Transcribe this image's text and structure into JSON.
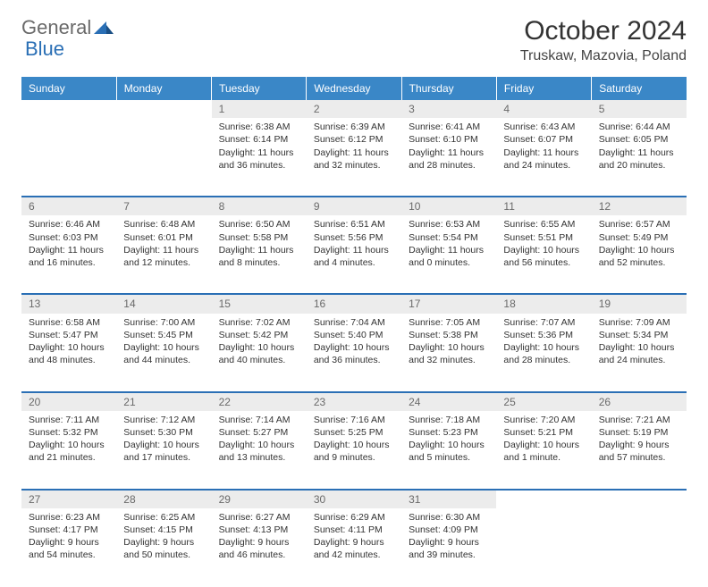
{
  "brand": {
    "part1": "General",
    "part2": "Blue"
  },
  "title": "October 2024",
  "location": "Truskaw, Mazovia, Poland",
  "colors": {
    "header_bg": "#3a87c7",
    "header_text": "#ffffff",
    "daynum_bg": "#ececec",
    "daynum_text": "#6a6a6a",
    "border": "#2a6fb5",
    "body_text": "#333333",
    "logo_gray": "#6a6a6a",
    "logo_blue": "#2a6fb5"
  },
  "weekdays": [
    "Sunday",
    "Monday",
    "Tuesday",
    "Wednesday",
    "Thursday",
    "Friday",
    "Saturday"
  ],
  "weeks": [
    [
      null,
      null,
      {
        "n": "1",
        "sunrise": "Sunrise: 6:38 AM",
        "sunset": "Sunset: 6:14 PM",
        "daylight": "Daylight: 11 hours and 36 minutes."
      },
      {
        "n": "2",
        "sunrise": "Sunrise: 6:39 AM",
        "sunset": "Sunset: 6:12 PM",
        "daylight": "Daylight: 11 hours and 32 minutes."
      },
      {
        "n": "3",
        "sunrise": "Sunrise: 6:41 AM",
        "sunset": "Sunset: 6:10 PM",
        "daylight": "Daylight: 11 hours and 28 minutes."
      },
      {
        "n": "4",
        "sunrise": "Sunrise: 6:43 AM",
        "sunset": "Sunset: 6:07 PM",
        "daylight": "Daylight: 11 hours and 24 minutes."
      },
      {
        "n": "5",
        "sunrise": "Sunrise: 6:44 AM",
        "sunset": "Sunset: 6:05 PM",
        "daylight": "Daylight: 11 hours and 20 minutes."
      }
    ],
    [
      {
        "n": "6",
        "sunrise": "Sunrise: 6:46 AM",
        "sunset": "Sunset: 6:03 PM",
        "daylight": "Daylight: 11 hours and 16 minutes."
      },
      {
        "n": "7",
        "sunrise": "Sunrise: 6:48 AM",
        "sunset": "Sunset: 6:01 PM",
        "daylight": "Daylight: 11 hours and 12 minutes."
      },
      {
        "n": "8",
        "sunrise": "Sunrise: 6:50 AM",
        "sunset": "Sunset: 5:58 PM",
        "daylight": "Daylight: 11 hours and 8 minutes."
      },
      {
        "n": "9",
        "sunrise": "Sunrise: 6:51 AM",
        "sunset": "Sunset: 5:56 PM",
        "daylight": "Daylight: 11 hours and 4 minutes."
      },
      {
        "n": "10",
        "sunrise": "Sunrise: 6:53 AM",
        "sunset": "Sunset: 5:54 PM",
        "daylight": "Daylight: 11 hours and 0 minutes."
      },
      {
        "n": "11",
        "sunrise": "Sunrise: 6:55 AM",
        "sunset": "Sunset: 5:51 PM",
        "daylight": "Daylight: 10 hours and 56 minutes."
      },
      {
        "n": "12",
        "sunrise": "Sunrise: 6:57 AM",
        "sunset": "Sunset: 5:49 PM",
        "daylight": "Daylight: 10 hours and 52 minutes."
      }
    ],
    [
      {
        "n": "13",
        "sunrise": "Sunrise: 6:58 AM",
        "sunset": "Sunset: 5:47 PM",
        "daylight": "Daylight: 10 hours and 48 minutes."
      },
      {
        "n": "14",
        "sunrise": "Sunrise: 7:00 AM",
        "sunset": "Sunset: 5:45 PM",
        "daylight": "Daylight: 10 hours and 44 minutes."
      },
      {
        "n": "15",
        "sunrise": "Sunrise: 7:02 AM",
        "sunset": "Sunset: 5:42 PM",
        "daylight": "Daylight: 10 hours and 40 minutes."
      },
      {
        "n": "16",
        "sunrise": "Sunrise: 7:04 AM",
        "sunset": "Sunset: 5:40 PM",
        "daylight": "Daylight: 10 hours and 36 minutes."
      },
      {
        "n": "17",
        "sunrise": "Sunrise: 7:05 AM",
        "sunset": "Sunset: 5:38 PM",
        "daylight": "Daylight: 10 hours and 32 minutes."
      },
      {
        "n": "18",
        "sunrise": "Sunrise: 7:07 AM",
        "sunset": "Sunset: 5:36 PM",
        "daylight": "Daylight: 10 hours and 28 minutes."
      },
      {
        "n": "19",
        "sunrise": "Sunrise: 7:09 AM",
        "sunset": "Sunset: 5:34 PM",
        "daylight": "Daylight: 10 hours and 24 minutes."
      }
    ],
    [
      {
        "n": "20",
        "sunrise": "Sunrise: 7:11 AM",
        "sunset": "Sunset: 5:32 PM",
        "daylight": "Daylight: 10 hours and 21 minutes."
      },
      {
        "n": "21",
        "sunrise": "Sunrise: 7:12 AM",
        "sunset": "Sunset: 5:30 PM",
        "daylight": "Daylight: 10 hours and 17 minutes."
      },
      {
        "n": "22",
        "sunrise": "Sunrise: 7:14 AM",
        "sunset": "Sunset: 5:27 PM",
        "daylight": "Daylight: 10 hours and 13 minutes."
      },
      {
        "n": "23",
        "sunrise": "Sunrise: 7:16 AM",
        "sunset": "Sunset: 5:25 PM",
        "daylight": "Daylight: 10 hours and 9 minutes."
      },
      {
        "n": "24",
        "sunrise": "Sunrise: 7:18 AM",
        "sunset": "Sunset: 5:23 PM",
        "daylight": "Daylight: 10 hours and 5 minutes."
      },
      {
        "n": "25",
        "sunrise": "Sunrise: 7:20 AM",
        "sunset": "Sunset: 5:21 PM",
        "daylight": "Daylight: 10 hours and 1 minute."
      },
      {
        "n": "26",
        "sunrise": "Sunrise: 7:21 AM",
        "sunset": "Sunset: 5:19 PM",
        "daylight": "Daylight: 9 hours and 57 minutes."
      }
    ],
    [
      {
        "n": "27",
        "sunrise": "Sunrise: 6:23 AM",
        "sunset": "Sunset: 4:17 PM",
        "daylight": "Daylight: 9 hours and 54 minutes."
      },
      {
        "n": "28",
        "sunrise": "Sunrise: 6:25 AM",
        "sunset": "Sunset: 4:15 PM",
        "daylight": "Daylight: 9 hours and 50 minutes."
      },
      {
        "n": "29",
        "sunrise": "Sunrise: 6:27 AM",
        "sunset": "Sunset: 4:13 PM",
        "daylight": "Daylight: 9 hours and 46 minutes."
      },
      {
        "n": "30",
        "sunrise": "Sunrise: 6:29 AM",
        "sunset": "Sunset: 4:11 PM",
        "daylight": "Daylight: 9 hours and 42 minutes."
      },
      {
        "n": "31",
        "sunrise": "Sunrise: 6:30 AM",
        "sunset": "Sunset: 4:09 PM",
        "daylight": "Daylight: 9 hours and 39 minutes."
      },
      null,
      null
    ]
  ]
}
